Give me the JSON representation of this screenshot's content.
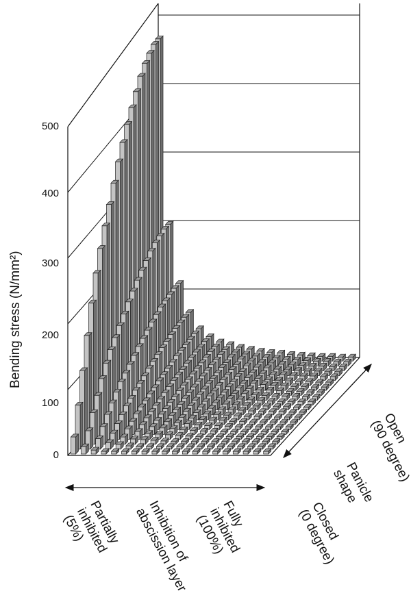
{
  "chart_data": {
    "type": "bar3d",
    "ylabel": "Bending stress (N/mm²)",
    "ylim": [
      0,
      500
    ],
    "yticks": [
      "0",
      "100",
      "200",
      "300",
      "400",
      "500"
    ],
    "x_axis": {
      "lines_left": [
        "Partially",
        "inhibited",
        "(5%)"
      ],
      "lines_mid": [
        "Inhibition of",
        "abscission layer"
      ],
      "lines_right": [
        "Fully",
        "inhibited",
        "(100%)"
      ]
    },
    "depth_axis": {
      "lines_back": [
        "Open",
        "(90 degree)"
      ],
      "lines_mid": [
        "Panicle",
        "shape"
      ],
      "lines_front": [
        "Closed",
        "(0 degree)"
      ]
    },
    "grid": true,
    "colors": {
      "bar_front": "#c4c4c4",
      "bar_side": "#6e6e6e",
      "bar_top": "#9a9a9a",
      "edge": "#222222"
    },
    "values_by_inhibition_column_closed_to_open": [
      [
        26,
        67,
        112,
        158,
        200,
        238,
        268,
        295,
        320,
        345,
        370,
        392,
        412,
        430,
        447,
        463,
        475,
        483,
        489,
        490
      ],
      [
        11,
        28,
        48,
        67,
        85,
        101,
        114,
        125,
        136,
        146,
        157,
        166,
        175,
        183,
        190,
        197,
        202,
        205,
        208,
        208
      ],
      [
        6,
        16,
        27,
        38,
        48,
        57,
        65,
        71,
        77,
        83,
        89,
        94,
        99,
        104,
        108,
        112,
        114,
        116,
        118,
        118
      ],
      [
        4,
        10,
        17,
        24,
        30,
        36,
        40,
        45,
        48,
        52,
        56,
        59,
        62,
        65,
        67,
        70,
        72,
        73,
        74,
        74
      ],
      [
        4,
        7,
        11,
        16,
        20,
        24,
        27,
        29,
        32,
        34,
        37,
        39,
        41,
        43,
        45,
        46,
        47,
        48,
        49,
        49
      ],
      [
        4,
        5,
        8,
        12,
        15,
        18,
        20,
        22,
        24,
        26,
        28,
        30,
        31,
        32,
        34,
        35,
        36,
        36,
        37,
        37
      ],
      [
        4,
        4,
        7,
        9,
        12,
        14,
        16,
        17,
        19,
        20,
        22,
        23,
        24,
        25,
        26,
        27,
        28,
        29,
        29,
        29
      ],
      [
        4,
        4,
        6,
        8,
        10,
        12,
        14,
        15,
        16,
        18,
        19,
        20,
        21,
        22,
        23,
        24,
        24,
        25,
        25,
        25
      ],
      [
        4,
        4,
        5,
        7,
        9,
        10,
        11,
        13,
        14,
        15,
        16,
        17,
        18,
        18,
        19,
        20,
        20,
        21,
        21,
        21
      ],
      [
        4,
        4,
        4,
        6,
        7,
        9,
        10,
        11,
        12,
        13,
        14,
        14,
        15,
        16,
        16,
        17,
        17,
        18,
        18,
        18
      ],
      [
        4,
        4,
        4,
        5,
        6,
        7,
        8,
        9,
        10,
        11,
        11,
        12,
        13,
        13,
        14,
        14,
        15,
        15,
        15,
        15
      ],
      [
        4,
        4,
        4,
        4,
        5,
        6,
        7,
        8,
        8,
        9,
        10,
        10,
        11,
        11,
        12,
        12,
        13,
        13,
        13,
        13
      ],
      [
        4,
        4,
        4,
        4,
        5,
        6,
        7,
        7,
        8,
        8,
        9,
        10,
        10,
        11,
        11,
        11,
        12,
        12,
        12,
        12
      ],
      [
        4,
        4,
        4,
        4,
        4,
        5,
        5,
        6,
        7,
        7,
        8,
        8,
        8,
        9,
        9,
        9,
        10,
        10,
        10,
        10
      ],
      [
        4,
        4,
        4,
        4,
        4,
        4,
        5,
        5,
        6,
        6,
        7,
        7,
        8,
        8,
        8,
        9,
        9,
        9,
        9,
        9
      ],
      [
        4,
        4,
        4,
        4,
        4,
        4,
        4,
        5,
        5,
        6,
        6,
        6,
        7,
        7,
        7,
        8,
        8,
        8,
        8,
        8
      ],
      [
        4,
        4,
        4,
        4,
        4,
        4,
        4,
        4,
        5,
        5,
        5,
        6,
        6,
        6,
        6,
        7,
        7,
        7,
        7,
        7
      ],
      [
        4,
        4,
        4,
        4,
        4,
        4,
        4,
        4,
        5,
        5,
        5,
        6,
        6,
        6,
        6,
        7,
        7,
        7,
        7,
        7
      ],
      [
        4,
        4,
        4,
        4,
        4,
        4,
        4,
        4,
        4,
        4,
        5,
        5,
        5,
        5,
        5,
        6,
        6,
        6,
        6,
        6
      ],
      [
        4,
        4,
        4,
        4,
        4,
        4,
        4,
        4,
        4,
        4,
        5,
        5,
        5,
        5,
        5,
        6,
        6,
        6,
        6,
        6
      ]
    ]
  }
}
